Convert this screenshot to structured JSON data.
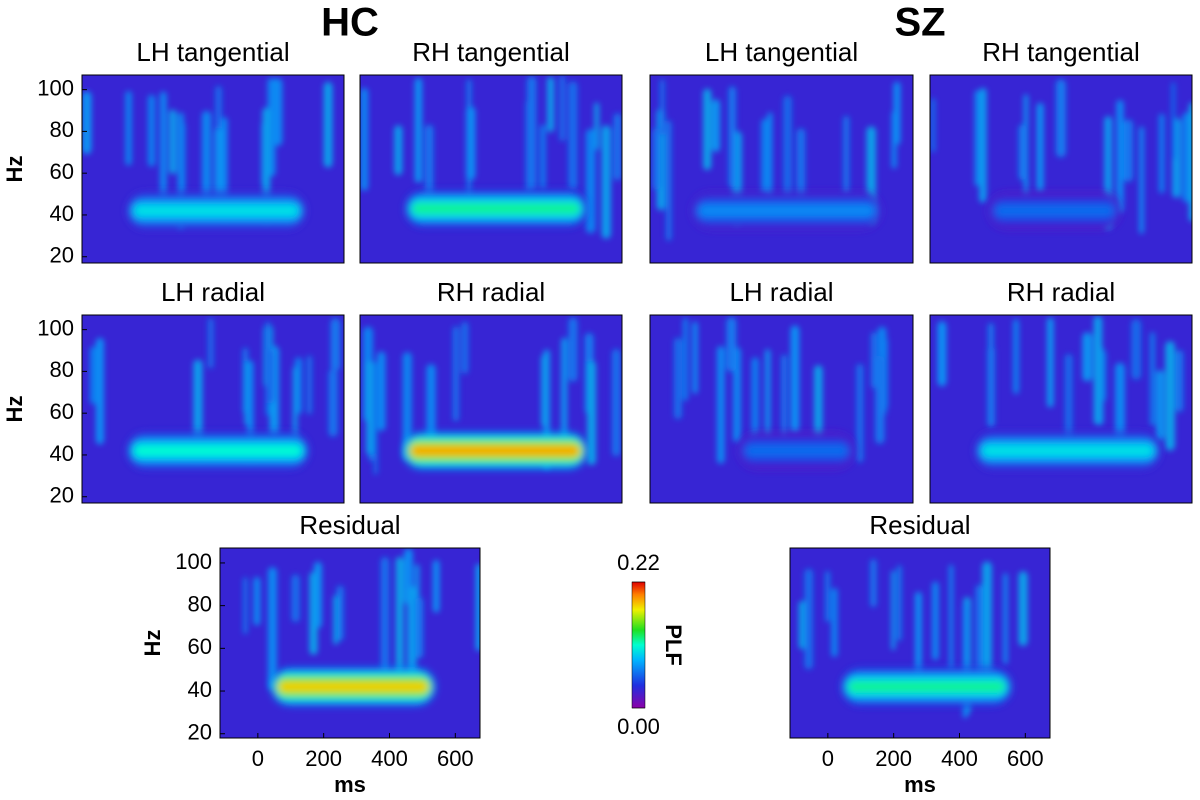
{
  "groups": [
    {
      "title": "HC"
    },
    {
      "title": "SZ"
    }
  ],
  "chart_data": [
    {
      "type": "heatmap",
      "title": "LH tangential",
      "ylabel": "Hz",
      "xlim": [
        -115,
        675
      ],
      "ylim": [
        17,
        107
      ],
      "yticks": [
        20,
        40,
        60,
        80,
        100
      ],
      "band": {
        "x": [
          20,
          560
        ],
        "y": 42,
        "peak": 0.1
      }
    },
    {
      "type": "heatmap",
      "title": "RH tangential",
      "xlim": [
        -115,
        675
      ],
      "ylim": [
        17,
        107
      ],
      "band": {
        "x": [
          20,
          570
        ],
        "y": 43,
        "peak": 0.12
      }
    },
    {
      "type": "heatmap",
      "title": "LH tangential",
      "xlim": [
        -115,
        675
      ],
      "ylim": [
        17,
        107
      ],
      "band": {
        "x": [
          10,
          580
        ],
        "y": 42,
        "peak": 0.07
      }
    },
    {
      "type": "heatmap",
      "title": "RH tangential",
      "xlim": [
        -115,
        675
      ],
      "ylim": [
        17,
        107
      ],
      "band": {
        "x": [
          60,
          460
        ],
        "y": 42,
        "peak": 0.06
      }
    },
    {
      "type": "heatmap",
      "title": "LH radial",
      "ylabel": "Hz",
      "xlim": [
        -115,
        675
      ],
      "ylim": [
        17,
        107
      ],
      "yticks": [
        20,
        40,
        60,
        80,
        100
      ],
      "band": {
        "x": [
          20,
          570
        ],
        "y": 42,
        "peak": 0.11
      }
    },
    {
      "type": "heatmap",
      "title": "RH radial",
      "xlim": [
        -115,
        675
      ],
      "ylim": [
        17,
        107
      ],
      "band": {
        "x": [
          15,
          570
        ],
        "y": 42,
        "peak": 0.19
      }
    },
    {
      "type": "heatmap",
      "title": "LH radial",
      "xlim": [
        -115,
        675
      ],
      "ylim": [
        17,
        107
      ],
      "band": {
        "x": [
          150,
          500
        ],
        "y": 42,
        "peak": 0.06
      }
    },
    {
      "type": "heatmap",
      "title": "RH radial",
      "xlim": [
        -115,
        675
      ],
      "ylim": [
        17,
        107
      ],
      "band": {
        "x": [
          20,
          580
        ],
        "y": 42,
        "peak": 0.1
      }
    },
    {
      "type": "heatmap",
      "title": "Residual",
      "ylabel": "Hz",
      "xlabel": "ms",
      "xlim": [
        -115,
        675
      ],
      "ylim": [
        18,
        107
      ],
      "yticks": [
        20,
        40,
        60,
        80,
        100
      ],
      "xticks": [
        0,
        200,
        400,
        600
      ],
      "band": {
        "x": [
          40,
          540
        ],
        "y": 42,
        "peak": 0.18
      }
    },
    {
      "type": "heatmap",
      "title": "Residual",
      "xlabel": "ms",
      "xlim": [
        -115,
        675
      ],
      "ylim": [
        18,
        107
      ],
      "xticks": [
        0,
        200,
        400,
        600
      ],
      "band": {
        "x": [
          40,
          560
        ],
        "y": 42,
        "peak": 0.12
      }
    }
  ],
  "colorbar": {
    "label": "PLF",
    "lim": [
      0,
      0.22
    ],
    "ticks": [
      {
        "value": 0,
        "label": "0.00"
      },
      0.22
    ]
  }
}
